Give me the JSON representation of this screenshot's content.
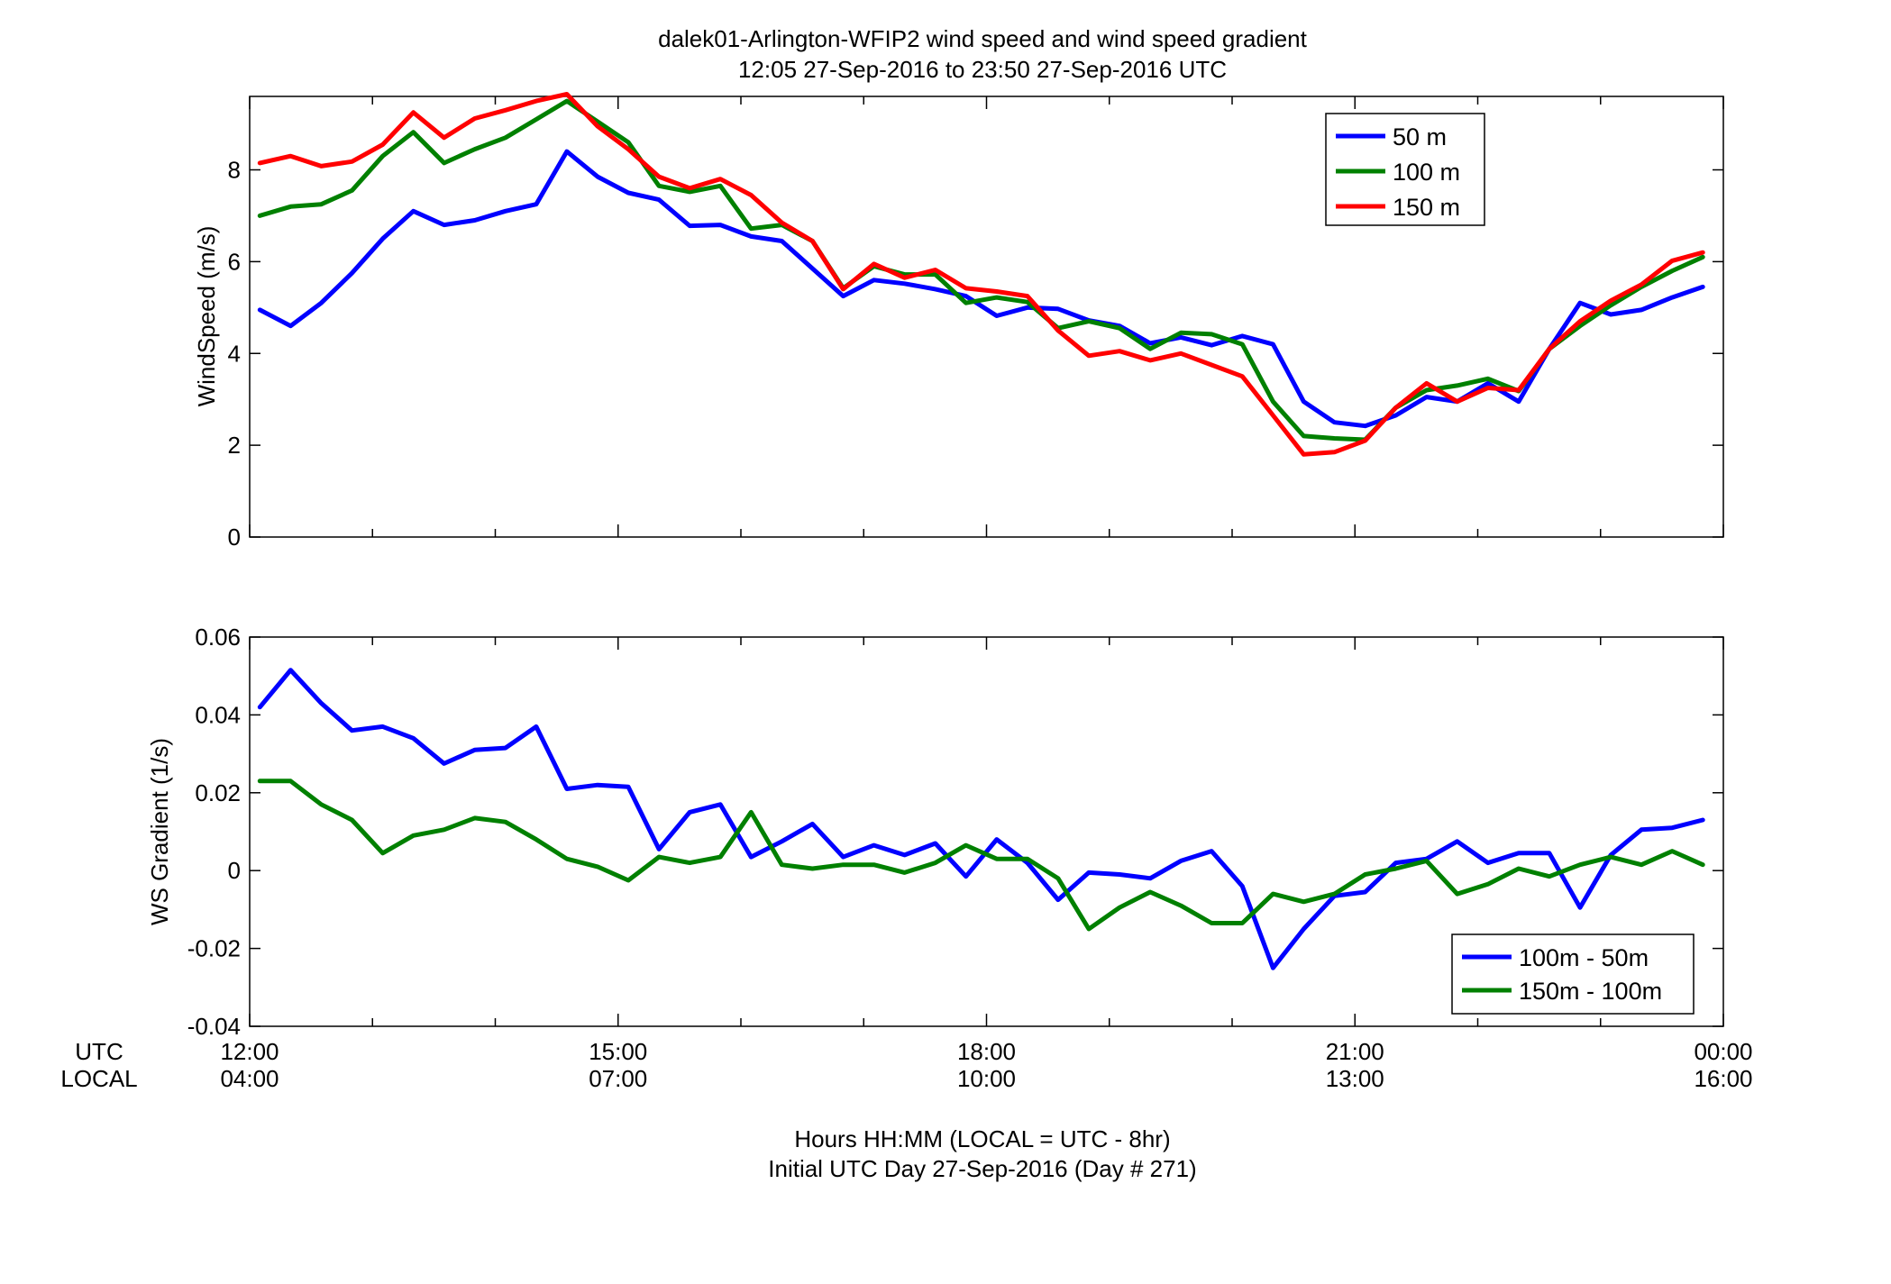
{
  "title": {
    "line1": "dalek01-Arlington-WFIP2  wind speed and wind speed gradient",
    "line2": "12:05 27-Sep-2016 to 23:50 27-Sep-2016  UTC"
  },
  "xaxis": {
    "row_label_utc": "UTC",
    "row_label_local": "LOCAL",
    "utc_ticks": [
      "12:00",
      "15:00",
      "18:00",
      "21:00",
      "00:00"
    ],
    "local_ticks": [
      "04:00",
      "07:00",
      "10:00",
      "13:00",
      "16:00"
    ],
    "caption_line1": "Hours HH:MM  (LOCAL = UTC - 8hr)",
    "caption_line2": "Initial UTC Day 27-Sep-2016 (Day # 271)"
  },
  "colors": {
    "blue": "#0000ff",
    "green": "#008000",
    "red": "#ff0000"
  },
  "chart_data": [
    {
      "type": "line",
      "ylabel": "WindSpeed (m/s)",
      "xlim": [
        12.0,
        24.0
      ],
      "ylim": [
        0,
        9.6
      ],
      "yticks": [
        "0",
        "2",
        "4",
        "6",
        "8"
      ],
      "legend_position": "top-right",
      "x_hours_utc": [
        12.083,
        12.333,
        12.583,
        12.833,
        13.083,
        13.333,
        13.583,
        13.833,
        14.083,
        14.333,
        14.583,
        14.833,
        15.083,
        15.333,
        15.583,
        15.833,
        16.083,
        16.333,
        16.583,
        16.833,
        17.083,
        17.333,
        17.583,
        17.833,
        18.083,
        18.333,
        18.583,
        18.833,
        19.083,
        19.333,
        19.583,
        19.833,
        20.083,
        20.333,
        20.583,
        20.833,
        21.083,
        21.333,
        21.583,
        21.833,
        22.083,
        22.333,
        22.583,
        22.833,
        23.083,
        23.333,
        23.583,
        23.833
      ],
      "series": [
        {
          "name": "50 m",
          "color": "#0000ff",
          "values": [
            4.95,
            4.6,
            5.1,
            5.75,
            6.5,
            7.1,
            6.8,
            6.9,
            7.1,
            7.25,
            8.4,
            7.85,
            7.5,
            7.35,
            6.78,
            6.8,
            6.55,
            6.45,
            5.85,
            5.25,
            5.6,
            5.52,
            5.4,
            5.25,
            4.82,
            5.0,
            4.97,
            4.72,
            4.6,
            4.22,
            4.35,
            4.18,
            4.38,
            4.2,
            2.95,
            2.5,
            2.42,
            2.65,
            3.05,
            2.95,
            3.35,
            2.95,
            4.1,
            5.1,
            4.85,
            4.95,
            5.22,
            5.45
          ]
        },
        {
          "name": "100 m",
          "color": "#008000",
          "values": [
            7.0,
            7.2,
            7.25,
            7.55,
            8.3,
            8.82,
            8.15,
            8.45,
            8.7,
            9.1,
            9.5,
            9.05,
            8.6,
            7.65,
            7.52,
            7.65,
            6.72,
            6.8,
            6.45,
            5.42,
            5.9,
            5.72,
            5.72,
            5.1,
            5.22,
            5.12,
            4.55,
            4.7,
            4.55,
            4.1,
            4.45,
            4.42,
            4.2,
            2.95,
            2.2,
            2.15,
            2.12,
            2.82,
            3.2,
            3.3,
            3.45,
            3.18,
            4.1,
            4.6,
            5.05,
            5.45,
            5.8,
            6.1
          ]
        },
        {
          "name": "150 m",
          "color": "#ff0000",
          "values": [
            8.15,
            8.3,
            8.08,
            8.18,
            8.55,
            9.25,
            8.7,
            9.12,
            9.3,
            9.5,
            9.65,
            8.95,
            8.45,
            7.85,
            7.6,
            7.8,
            7.45,
            6.85,
            6.45,
            5.4,
            5.95,
            5.65,
            5.82,
            5.42,
            5.35,
            5.25,
            4.5,
            3.95,
            4.05,
            3.85,
            4.0,
            3.75,
            3.5,
            2.65,
            1.8,
            1.85,
            2.1,
            2.82,
            3.35,
            2.95,
            3.25,
            3.2,
            4.1,
            4.7,
            5.15,
            5.5,
            6.02,
            6.2
          ]
        }
      ]
    },
    {
      "type": "line",
      "ylabel": "WS Gradient (1/s)",
      "xlim": [
        12.0,
        24.0
      ],
      "ylim": [
        -0.04,
        0.06
      ],
      "yticks": [
        "-0.04",
        "-0.02",
        "0",
        "0.02",
        "0.04",
        "0.06"
      ],
      "legend_position": "bottom-right",
      "x_hours_utc": [
        12.083,
        12.333,
        12.583,
        12.833,
        13.083,
        13.333,
        13.583,
        13.833,
        14.083,
        14.333,
        14.583,
        14.833,
        15.083,
        15.333,
        15.583,
        15.833,
        16.083,
        16.333,
        16.583,
        16.833,
        17.083,
        17.333,
        17.583,
        17.833,
        18.083,
        18.333,
        18.583,
        18.833,
        19.083,
        19.333,
        19.583,
        19.833,
        20.083,
        20.333,
        20.583,
        20.833,
        21.083,
        21.333,
        21.583,
        21.833,
        22.083,
        22.333,
        22.583,
        22.833,
        23.083,
        23.333,
        23.583,
        23.833
      ],
      "series": [
        {
          "name": "100m - 50m",
          "color": "#0000ff",
          "values": [
            0.042,
            0.0515,
            0.043,
            0.036,
            0.037,
            0.034,
            0.0275,
            0.031,
            0.0315,
            0.037,
            0.021,
            0.022,
            0.0215,
            0.0055,
            0.015,
            0.017,
            0.0035,
            0.0075,
            0.012,
            0.0035,
            0.0065,
            0.004,
            0.007,
            -0.0015,
            0.008,
            0.002,
            -0.0075,
            -0.0005,
            -0.001,
            -0.002,
            0.0025,
            0.005,
            -0.004,
            -0.025,
            -0.015,
            -0.0065,
            -0.0055,
            0.002,
            0.003,
            0.0075,
            0.002,
            0.0045,
            0.0045,
            -0.0095,
            0.004,
            0.0105,
            0.011,
            0.013
          ]
        },
        {
          "name": "150m - 100m",
          "color": "#008000",
          "values": [
            0.023,
            0.023,
            0.017,
            0.013,
            0.0045,
            0.009,
            0.0105,
            0.0135,
            0.0125,
            0.008,
            0.003,
            0.001,
            -0.0025,
            0.0035,
            0.002,
            0.0035,
            0.015,
            0.0015,
            0.0005,
            0.0015,
            0.0015,
            -0.0005,
            0.002,
            0.0065,
            0.003,
            0.003,
            -0.002,
            -0.015,
            -0.0095,
            -0.0055,
            -0.009,
            -0.0135,
            -0.0135,
            -0.006,
            -0.008,
            -0.006,
            -0.001,
            0.0005,
            0.0025,
            -0.006,
            -0.0035,
            0.0005,
            -0.0015,
            0.0015,
            0.0035,
            0.0015,
            0.005,
            0.0015
          ]
        }
      ]
    }
  ]
}
